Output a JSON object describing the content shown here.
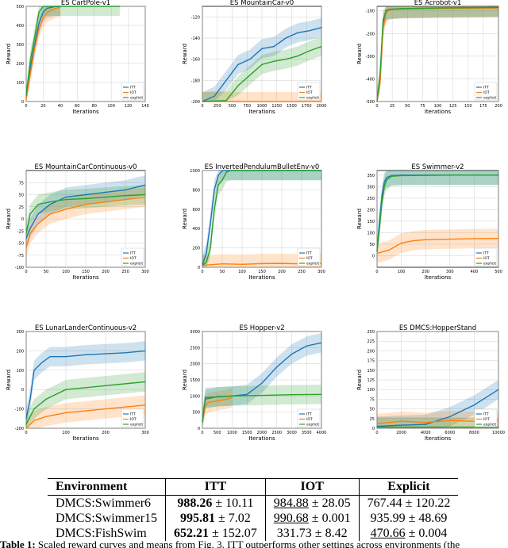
{
  "chart_data": [
    {
      "type": "line",
      "title": "ES CartPole-v1",
      "xlabel": "Iterations",
      "ylabel": "Reward",
      "xlim": [
        0,
        140
      ],
      "ylim": [
        0,
        500
      ],
      "xticks": [
        0,
        20,
        40,
        60,
        80,
        100,
        120,
        140
      ],
      "yticks": [
        0,
        100,
        200,
        300,
        400,
        500
      ],
      "legend": [
        "ITT",
        "IOT",
        "explicit"
      ],
      "legend_position": "bottom-right",
      "series": [
        {
          "name": "ITT",
          "x": [
            0,
            5,
            10,
            15,
            20,
            25,
            30,
            35,
            40
          ],
          "values": [
            20,
            180,
            300,
            410,
            470,
            490,
            495,
            500,
            500
          ]
        },
        {
          "name": "IOT",
          "x": [
            0,
            5,
            10,
            15,
            20,
            25,
            30,
            35,
            40
          ],
          "values": [
            10,
            150,
            280,
            380,
            440,
            470,
            480,
            490,
            495
          ]
        },
        {
          "name": "explicit",
          "x": [
            0,
            5,
            10,
            15,
            20,
            25,
            30,
            40,
            60,
            100,
            110
          ],
          "values": [
            30,
            220,
            340,
            470,
            500,
            500,
            500,
            500,
            500,
            500,
            500
          ]
        }
      ]
    },
    {
      "type": "line",
      "title": "ES MountainCar-v0",
      "xlabel": "Iterations",
      "ylabel": "Reward",
      "xlim": [
        0,
        2000
      ],
      "ylim": [
        -200,
        -110
      ],
      "xticks": [
        0,
        250,
        500,
        750,
        1000,
        1250,
        1500,
        1750,
        2000
      ],
      "yticks": [
        -200,
        -180,
        -160,
        -140,
        -120
      ],
      "legend": [
        "ITT",
        "IOT",
        "explicit"
      ],
      "legend_position": "bottom-right",
      "series": [
        {
          "name": "ITT",
          "x": [
            0,
            200,
            400,
            600,
            800,
            1000,
            1200,
            1400,
            1600,
            1800,
            2000
          ],
          "values": [
            -200,
            -195,
            -180,
            -165,
            -160,
            -150,
            -148,
            -140,
            -135,
            -133,
            -130
          ]
        },
        {
          "name": "IOT",
          "x": [
            0,
            2000
          ],
          "values": [
            -200,
            -200
          ]
        },
        {
          "name": "explicit",
          "x": [
            0,
            400,
            600,
            800,
            1000,
            1200,
            1400,
            1600,
            1800,
            2000
          ],
          "values": [
            -200,
            -199,
            -185,
            -175,
            -165,
            -162,
            -160,
            -157,
            -152,
            -148
          ]
        }
      ]
    },
    {
      "type": "line",
      "title": "ES Acrobot-v1",
      "xlabel": "Iterations",
      "ylabel": "Reward",
      "xlim": [
        0,
        200
      ],
      "ylim": [
        -500,
        -80
      ],
      "xticks": [
        0,
        25,
        50,
        75,
        100,
        125,
        150,
        175,
        200
      ],
      "yticks": [
        -500,
        -400,
        -300,
        -200,
        -100
      ],
      "legend": [
        "ITT",
        "IOT",
        "explicit"
      ],
      "legend_position": "bottom-right",
      "series": [
        {
          "name": "ITT",
          "x": [
            0,
            5,
            10,
            15,
            20,
            40,
            100,
            200
          ],
          "values": [
            -500,
            -400,
            -150,
            -100,
            -95,
            -90,
            -88,
            -85
          ]
        },
        {
          "name": "IOT",
          "x": [
            0,
            5,
            10,
            15,
            20,
            40,
            100,
            200
          ],
          "values": [
            -500,
            -420,
            -180,
            -110,
            -96,
            -92,
            -89,
            -87
          ]
        },
        {
          "name": "explicit",
          "x": [
            0,
            5,
            10,
            15,
            20,
            40,
            100,
            200
          ],
          "values": [
            -500,
            -380,
            -140,
            -98,
            -93,
            -90,
            -87,
            -85
          ]
        }
      ]
    },
    {
      "type": "line",
      "title": "ES MountainCarContinuous-v0",
      "xlabel": "Iterations",
      "ylabel": "Reward",
      "xlim": [
        0,
        300
      ],
      "ylim": [
        -100,
        100
      ],
      "xticks": [
        0,
        50,
        100,
        150,
        200,
        250,
        300
      ],
      "yticks": [
        -100,
        -75,
        -50,
        -25,
        0,
        25,
        50,
        75
      ],
      "legend": [
        "ITT",
        "IOT",
        "explicit"
      ],
      "legend_position": "bottom-right",
      "series": [
        {
          "name": "ITT",
          "x": [
            0,
            10,
            30,
            60,
            100,
            150,
            200,
            250,
            300
          ],
          "values": [
            -40,
            -20,
            10,
            30,
            45,
            50,
            55,
            60,
            70
          ]
        },
        {
          "name": "IOT",
          "x": [
            0,
            10,
            30,
            60,
            100,
            150,
            200,
            250,
            300
          ],
          "values": [
            -60,
            -30,
            -10,
            10,
            20,
            30,
            35,
            40,
            45
          ]
        },
        {
          "name": "explicit",
          "x": [
            0,
            10,
            30,
            60,
            100,
            150,
            200,
            250,
            300
          ],
          "values": [
            -30,
            10,
            30,
            35,
            40,
            42,
            45,
            48,
            50
          ]
        }
      ]
    },
    {
      "type": "line",
      "title": "ES InvertedPendulumBulletEnv-v0",
      "xlabel": "Iterations",
      "ylabel": "Reward",
      "xlim": [
        0,
        300
      ],
      "ylim": [
        0,
        1000
      ],
      "xticks": [
        0,
        50,
        100,
        150,
        200,
        250,
        300
      ],
      "yticks": [
        0,
        200,
        400,
        600,
        800,
        1000
      ],
      "legend": [
        "ITT",
        "IOT",
        "explicit"
      ],
      "legend_position": "bottom-right",
      "series": [
        {
          "name": "ITT",
          "x": [
            0,
            10,
            20,
            30,
            40,
            50,
            60,
            300
          ],
          "values": [
            20,
            150,
            450,
            800,
            950,
            1000,
            1000,
            1000
          ]
        },
        {
          "name": "IOT",
          "x": [
            0,
            50,
            100,
            150,
            200,
            250,
            300
          ],
          "values": [
            20,
            35,
            30,
            38,
            40,
            35,
            40
          ]
        },
        {
          "name": "explicit",
          "x": [
            0,
            10,
            20,
            30,
            40,
            50,
            60,
            70,
            300
          ],
          "values": [
            20,
            50,
            200,
            600,
            850,
            900,
            980,
            1000,
            1000
          ]
        }
      ]
    },
    {
      "type": "line",
      "title": "ES Swimmer-v2",
      "xlabel": "Iterations",
      "ylabel": "Reward",
      "xlim": [
        0,
        500
      ],
      "ylim": [
        -50,
        370
      ],
      "xticks": [
        0,
        100,
        200,
        300,
        400,
        500
      ],
      "yticks": [
        0,
        50,
        100,
        150,
        200,
        250,
        300,
        350
      ],
      "legend": [
        "ITT",
        "IOT",
        "explicit"
      ],
      "legend_position": "bottom-right",
      "series": [
        {
          "name": "ITT",
          "x": [
            0,
            10,
            20,
            30,
            40,
            60,
            100,
            300,
            500
          ],
          "values": [
            20,
            150,
            260,
            320,
            340,
            348,
            350,
            350,
            350
          ]
        },
        {
          "name": "IOT",
          "x": [
            0,
            50,
            100,
            150,
            200,
            300,
            400,
            500
          ],
          "values": [
            10,
            25,
            55,
            65,
            70,
            72,
            74,
            75
          ]
        },
        {
          "name": "explicit",
          "x": [
            0,
            10,
            20,
            30,
            40,
            60,
            100,
            300,
            500
          ],
          "values": [
            20,
            120,
            230,
            300,
            330,
            345,
            348,
            350,
            350
          ]
        }
      ]
    },
    {
      "type": "line",
      "title": "ES LunarLanderContinuous-v2",
      "xlabel": "Iterations",
      "ylabel": "Reward",
      "xlim": [
        0,
        300
      ],
      "ylim": [
        -200,
        300
      ],
      "xticks": [
        0,
        100,
        200,
        300
      ],
      "yticks": [
        -200,
        -100,
        0,
        100,
        200,
        300
      ],
      "legend": [
        "ITT",
        "IOT",
        "explicit"
      ],
      "legend_position": "bottom-right",
      "series": [
        {
          "name": "ITT",
          "x": [
            0,
            10,
            20,
            40,
            60,
            100,
            150,
            200,
            250,
            300
          ],
          "values": [
            -150,
            -50,
            100,
            140,
            170,
            170,
            180,
            185,
            190,
            200
          ]
        },
        {
          "name": "IOT",
          "x": [
            0,
            20,
            50,
            100,
            150,
            200,
            250,
            300
          ],
          "values": [
            -200,
            -160,
            -140,
            -120,
            -110,
            -100,
            -90,
            -80
          ]
        },
        {
          "name": "explicit",
          "x": [
            0,
            20,
            50,
            100,
            150,
            200,
            250,
            300
          ],
          "values": [
            -180,
            -100,
            -50,
            0,
            10,
            20,
            30,
            40
          ]
        }
      ]
    },
    {
      "type": "line",
      "title": "ES Hopper-v2",
      "xlabel": "Iterations",
      "ylabel": "Reward",
      "xlim": [
        0,
        4000
      ],
      "ylim": [
        0,
        3000
      ],
      "xticks": [
        0,
        500,
        1000,
        1500,
        2000,
        2500,
        3000,
        3500,
        4000
      ],
      "yticks": [
        0,
        500,
        1000,
        1500,
        2000,
        2500,
        3000
      ],
      "legend": [
        "ITT",
        "IOT",
        "explicit"
      ],
      "legend_position": "bottom-right",
      "series": [
        {
          "name": "ITT",
          "x": [
            0,
            100,
            1000,
            1500,
            2000,
            2500,
            3000,
            3500,
            4000
          ],
          "values": [
            200,
            950,
            1000,
            1050,
            1400,
            1900,
            2300,
            2550,
            2650
          ]
        },
        {
          "name": "IOT",
          "x": [
            0,
            100,
            200,
            500,
            800,
            1000
          ],
          "values": [
            200,
            700,
            800,
            850,
            900,
            950
          ]
        },
        {
          "name": "explicit",
          "x": [
            0,
            100,
            500,
            1000,
            2000,
            3000,
            4000
          ],
          "values": [
            200,
            900,
            980,
            1000,
            1020,
            1040,
            1050
          ]
        }
      ]
    },
    {
      "type": "line",
      "title": "ES DMCS:HopperStand",
      "xlabel": "Iterations",
      "ylabel": "Reward",
      "xlim": [
        0,
        10000
      ],
      "ylim": [
        0,
        250
      ],
      "xticks": [
        0,
        2000,
        4000,
        6000,
        8000,
        10000
      ],
      "yticks": [
        0,
        25,
        50,
        75,
        100,
        125,
        150,
        175,
        200,
        225,
        250
      ],
      "legend": [
        "ITT",
        "IOT",
        "explicit"
      ],
      "legend_position": "bottom-right",
      "series": [
        {
          "name": "ITT",
          "x": [
            0,
            2000,
            4000,
            5000,
            6000,
            7000,
            8000,
            9000,
            10000
          ],
          "values": [
            5,
            8,
            10,
            20,
            30,
            45,
            60,
            80,
            100
          ]
        },
        {
          "name": "IOT",
          "x": [
            0,
            2000,
            4000,
            6000,
            8000,
            10000
          ],
          "values": [
            12,
            18,
            15,
            20,
            18,
            20
          ]
        },
        {
          "name": "explicit",
          "x": [
            0,
            10000
          ],
          "values": [
            3,
            3
          ]
        }
      ]
    }
  ],
  "colors": {
    "ITT": "#1f77b4",
    "IOT": "#ff7f0e",
    "explicit": "#2ca02c"
  },
  "table": {
    "headers": [
      "Environment",
      "ITT",
      "IOT",
      "Explicit"
    ],
    "rows": [
      {
        "env": "DMCS:Swimmer6",
        "itt_mean": "988.26",
        "itt_pm": " ± 10.11",
        "iot_mean": "984.88",
        "iot_pm": " ± 28.05",
        "exp_mean": "767.44",
        "exp_pm": " ± 120.22",
        "best": "itt",
        "second": "iot"
      },
      {
        "env": "DMCS:Swimmer15",
        "itt_mean": "995.81",
        "itt_pm": " ± 7.02",
        "iot_mean": "990.68",
        "iot_pm": " ± 0.001",
        "exp_mean": "935.99",
        "exp_pm": " ± 48.69",
        "best": "itt",
        "second": "iot"
      },
      {
        "env": "DMCS:FishSwim",
        "itt_mean": "652.21",
        "itt_pm": " ± 152.07",
        "iot_mean": "331.73",
        "iot_pm": " ± 8.42",
        "exp_mean": "470.66",
        "exp_pm": " ± 0.004",
        "best": "itt",
        "second": "exp"
      }
    ]
  },
  "caption": {
    "label": "Table 1:",
    "text": "Scaled reward curves and means from Fig. 3. ITT outperforms other settings across environments (the"
  }
}
